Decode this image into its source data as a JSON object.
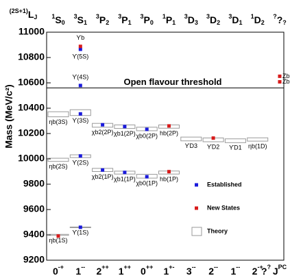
{
  "chart_data": {
    "type": "spectrum",
    "y_label": "Mass (MeV/c²)",
    "ylim": [
      9200,
      11000
    ],
    "yticks": [
      9200,
      9400,
      9600,
      9800,
      10000,
      10200,
      10400,
      10600,
      10800,
      11000
    ],
    "header": {
      "sup": "(2S+1)",
      "main": "L",
      "sub": "J"
    },
    "columns": [
      {
        "sup": "1",
        "main": "S",
        "sub": "0"
      },
      {
        "sup": "3",
        "main": "S",
        "sub": "1"
      },
      {
        "sup": "3",
        "main": "P",
        "sub": "2"
      },
      {
        "sup": "3",
        "main": "P",
        "sub": "1"
      },
      {
        "sup": "3",
        "main": "P",
        "sub": "0"
      },
      {
        "sup": "1",
        "main": "P",
        "sub": "1"
      },
      {
        "sup": "3",
        "main": "D",
        "sub": "3"
      },
      {
        "sup": "3",
        "main": "D",
        "sub": "2"
      },
      {
        "sup": "3",
        "main": "D",
        "sub": "1"
      },
      {
        "sup": "1",
        "main": "D",
        "sub": "2"
      },
      {
        "sup": "?",
        "main": "?",
        "sub": "?"
      }
    ],
    "jpc": [
      {
        "main": "0",
        "sup": "-+"
      },
      {
        "main": "1",
        "sup": "--"
      },
      {
        "main": "2",
        "sup": "++"
      },
      {
        "main": "1",
        "sup": "++"
      },
      {
        "main": "0",
        "sup": "++"
      },
      {
        "main": "1",
        "sup": "+-"
      },
      {
        "main": "3",
        "sup": "--"
      },
      {
        "main": "2",
        "sup": "--"
      },
      {
        "main": "1",
        "sup": "--"
      },
      {
        "main": "2",
        "sup": "-+"
      },
      {
        "main": "?",
        "sup": "?"
      }
    ],
    "jpc_label": {
      "main": "J",
      "sup": "PC"
    },
    "threshold": {
      "label": "Open flavour threshold",
      "value": 10560
    },
    "states": [
      {
        "label": "ηb(1S)",
        "column": 0,
        "mass": 9391,
        "color": "#d81b1b",
        "theory": [
          9396,
          9404
        ]
      },
      {
        "label": "ϒ(1S)",
        "column": 1,
        "mass": 9460,
        "color": "#1a1adb",
        "theory": [
          9458,
          9462
        ]
      },
      {
        "label": "ηb(2S)",
        "column": 0,
        "mass": null,
        "color": null,
        "theory": [
          9980,
          10005
        ]
      },
      {
        "label": "ϒ(2S)",
        "column": 1,
        "mass": 10023,
        "color": "#1a1adb",
        "theory": [
          10010,
          10032
        ]
      },
      {
        "label": "ηb(3S)",
        "column": 0,
        "mass": null,
        "color": null,
        "theory": [
          10332,
          10372
        ]
      },
      {
        "label": "ϒ(3S)",
        "column": 1,
        "mass": 10355,
        "color": "#1a1adb",
        "theory": [
          10342,
          10388
        ]
      },
      {
        "label": "ϒ(4S)",
        "column": 1,
        "mass": 10579,
        "color": "#1a1adb",
        "theory": null
      },
      {
        "label": "ϒ(5S)",
        "column": 1,
        "mass": 10865,
        "color": "#1a1adb",
        "theory": null
      },
      {
        "label": "ϒb",
        "column": 1,
        "mass": 10888,
        "color": "#d81b1b",
        "theory": null
      },
      {
        "label": "χb2(2P)",
        "column": 2,
        "mass": 10269,
        "color": "#1a1adb",
        "theory": [
          10250,
          10280
        ]
      },
      {
        "label": "χb1(2P)",
        "column": 3,
        "mass": 10255,
        "color": "#1a1adb",
        "theory": [
          10240,
          10268
        ]
      },
      {
        "label": "χb0(2P)",
        "column": 4,
        "mass": 10233,
        "color": "#1a1adb",
        "theory": [
          10222,
          10250
        ]
      },
      {
        "label": "hb(2P)",
        "column": 5,
        "mass": 10260,
        "color": "#d81b1b",
        "theory": [
          10242,
          10268
        ]
      },
      {
        "label": "ϒD3",
        "column": 6,
        "mass": null,
        "color": null,
        "theory": [
          10142,
          10172
        ]
      },
      {
        "label": "ϒD2",
        "column": 7,
        "mass": 10164,
        "color": "#d81b1b",
        "theory": [
          10135,
          10165
        ]
      },
      {
        "label": "ϒD1",
        "column": 8,
        "mass": null,
        "color": null,
        "theory": [
          10128,
          10158
        ]
      },
      {
        "label": "ηb(1D)",
        "column": 9,
        "mass": null,
        "color": null,
        "theory": [
          10140,
          10166
        ]
      },
      {
        "label": "χb2(1P)",
        "column": 2,
        "mass": 9912,
        "color": "#1a1adb",
        "theory": [
          9900,
          9925
        ]
      },
      {
        "label": "χb1(1P)",
        "column": 3,
        "mass": 9893,
        "color": "#1a1adb",
        "theory": [
          9880,
          9903
        ]
      },
      {
        "label": "χb0(1P)",
        "column": 4,
        "mass": 9859,
        "color": "#1a1adb",
        "theory": [
          9848,
          9878
        ]
      },
      {
        "label": "hb(1P)",
        "column": 5,
        "mass": 9899,
        "color": "#d81b1b",
        "theory": [
          9880,
          9904
        ]
      },
      {
        "label": "Zb1",
        "column": 10,
        "mass": 10652,
        "color": "#d81b1b",
        "theory": null
      },
      {
        "label": "Zb2",
        "column": 10,
        "mass": 10608,
        "color": "#d81b1b",
        "theory": null
      }
    ],
    "legend": [
      {
        "name": "Established",
        "color": "#1a1adb"
      },
      {
        "name": "New States",
        "color": "#d81b1b"
      },
      {
        "name": "Theory",
        "color": "#999999"
      }
    ]
  }
}
